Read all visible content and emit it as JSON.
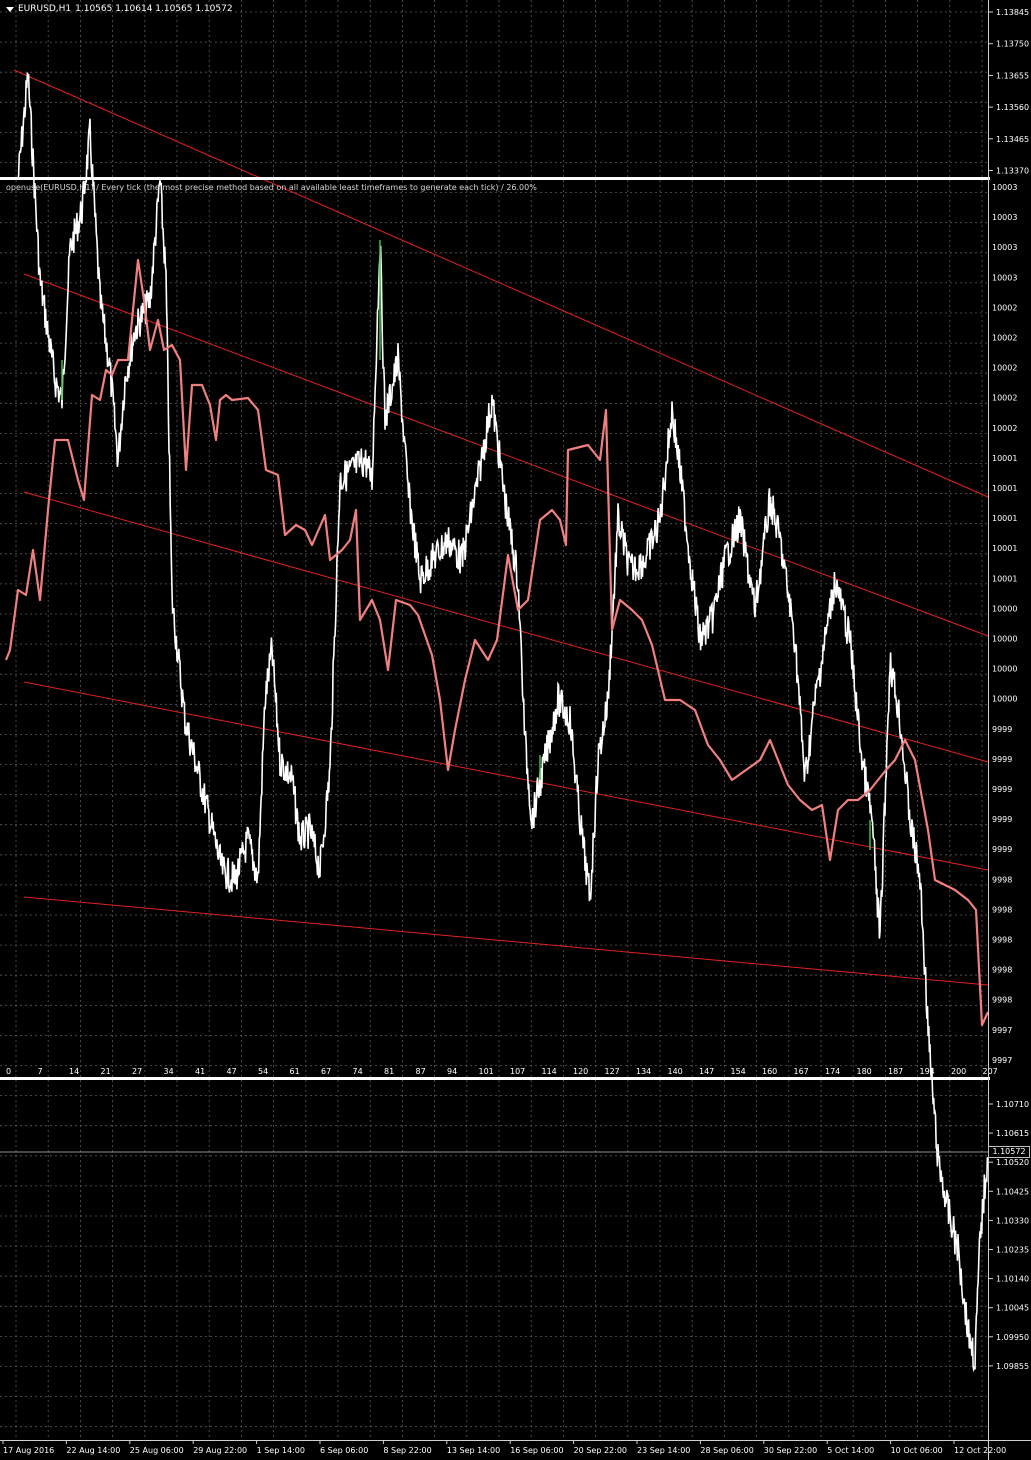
{
  "header": {
    "symbol_label": "EURUSD,H1",
    "ohlc": "1.10565 1.10614 1.10565 1.10572"
  },
  "overlay": {
    "title": "openuse(EURUSD,H1) / Every tick (the most precise method based on all available least timeframes to generate each tick) / 26.00%"
  },
  "price_axis": {
    "top_ticks": [
      "1.13845",
      "1.13750",
      "1.13655",
      "1.13560",
      "1.13465",
      "1.13370"
    ],
    "bottom_ticks": [
      "1.10710",
      "1.10615",
      "1.10520",
      "1.10425",
      "1.10330",
      "1.10235",
      "1.10140",
      "1.10045",
      "1.09950",
      "1.09855"
    ],
    "current_price": "1.10572"
  },
  "overlay_axis": {
    "ticks": [
      "10003",
      "10003",
      "10003",
      "10003",
      "10002",
      "10002",
      "10002",
      "10002",
      "10002",
      "10001",
      "10001",
      "10001",
      "10001",
      "10001",
      "10000",
      "10000",
      "10000",
      "10000",
      "9999",
      "9999",
      "9999",
      "9999",
      "9999",
      "9998",
      "9998",
      "9998",
      "9998",
      "9998",
      "9997",
      "9997"
    ],
    "index_ticks": [
      "0",
      "7",
      "14",
      "21",
      "27",
      "34",
      "41",
      "47",
      "54",
      "61",
      "67",
      "74",
      "81",
      "87",
      "94",
      "101",
      "107",
      "114",
      "120",
      "127",
      "134",
      "140",
      "147",
      "154",
      "160",
      "167",
      "174",
      "180",
      "187",
      "194",
      "200",
      "207"
    ]
  },
  "time_axis": {
    "ticks": [
      "17 Aug 2016",
      "22 Aug 14:00",
      "25 Aug 06:00",
      "29 Aug 22:00",
      "1 Sep 14:00",
      "6 Sep 06:00",
      "8 Sep 22:00",
      "13 Sep 14:00",
      "16 Sep 06:00",
      "20 Sep 22:00",
      "23 Sep 14:00",
      "28 Sep 06:00",
      "30 Sep 22:00",
      "5 Oct 14:00",
      "10 Oct 06:00",
      "12 Oct 22:00"
    ]
  },
  "colors": {
    "background": "#000000",
    "price_line": "#ffffff",
    "equity_line": "#f08080",
    "trend_lines": "#e02020",
    "grid": "#5a5a5a",
    "bullish_candle": "#40c040"
  }
}
